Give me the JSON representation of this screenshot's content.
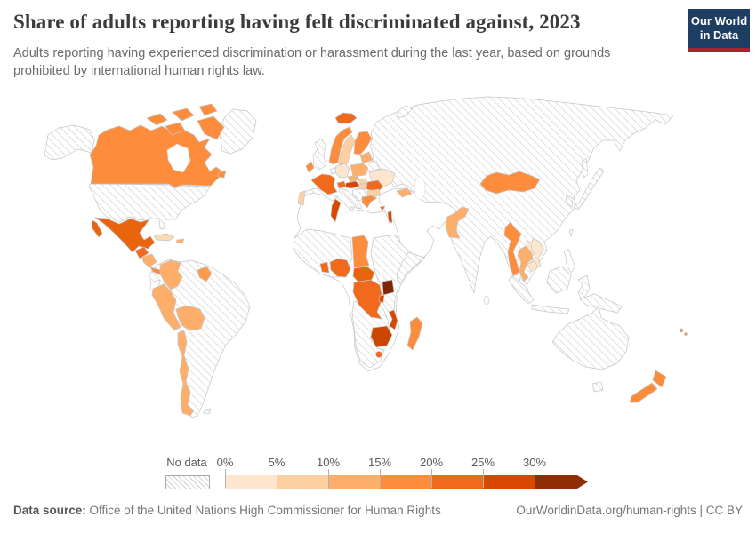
{
  "header": {
    "title": "Share of adults reporting having felt discriminated against, 2023",
    "subtitle": "Adults reporting having experienced discrimination or harassment during the last year, based on grounds prohibited by international human rights law.",
    "logo": {
      "line1": "Our World",
      "line2": "in Data"
    }
  },
  "legend": {
    "no_data_label": "No data",
    "tick_labels": [
      "0%",
      "5%",
      "10%",
      "15%",
      "20%",
      "25%",
      "30%"
    ],
    "buckets": [
      {
        "range": "0-5%",
        "color": "#fee6ce"
      },
      {
        "range": "5-10%",
        "color": "#fdd0a2"
      },
      {
        "range": "10-15%",
        "color": "#fdae6b"
      },
      {
        "range": "15-20%",
        "color": "#fd8d3c"
      },
      {
        "range": "20-25%",
        "color": "#f1691c"
      },
      {
        "range": "25-30%",
        "color": "#d94801"
      },
      {
        "range": "30%+",
        "color": "#8f2e06"
      }
    ]
  },
  "footer": {
    "source_label": "Data source:",
    "source_text": " Office of the United Nations High Commissioner for Human Rights",
    "url_text": "OurWorldinData.org/human-rights | CC BY"
  },
  "colors": {
    "logo_bg": "#1d3d63",
    "logo_accent": "#a3262e",
    "hatch_line": "#d2d2d2",
    "country_border": "#c6c6c6"
  },
  "chart_data": {
    "type": "choropleth_map",
    "title": "Share of adults reporting having felt discriminated against",
    "year": 2023,
    "unit": "% of adults",
    "no_data_style": "hatched",
    "legend_range": [
      0,
      30
    ],
    "countries": {
      "canada": {
        "name": "Canada",
        "color": "#fd8d3c",
        "range": "15-20%"
      },
      "mexico": {
        "name": "Mexico",
        "color": "#e8650e",
        "range": "20-25%"
      },
      "guatemala": {
        "name": "Guatemala",
        "color": "#f1691c",
        "range": "20-25%"
      },
      "honduras-nicaragua": {
        "name": "Honduras/Nicaragua",
        "color": "#fdae6b",
        "range": "10-15%"
      },
      "costa-rica-panama": {
        "name": "Costa Rica/Panama",
        "color": "#fd8d3c",
        "range": "15-20%"
      },
      "cuba": {
        "name": "Cuba",
        "color": "#fdd9b4",
        "range": "5-10%"
      },
      "dominican-republic": {
        "name": "Dominican Republic",
        "color": "#fdae6b",
        "range": "10-15%"
      },
      "colombia": {
        "name": "Colombia",
        "color": "#fdae6b",
        "range": "10-15%"
      },
      "guyana": {
        "name": "Guyana",
        "color": "#fd9a4e",
        "range": "15-20%"
      },
      "peru": {
        "name": "Peru",
        "color": "#fdae6b",
        "range": "10-15%"
      },
      "bolivia": {
        "name": "Bolivia",
        "color": "#fdae6b",
        "range": "10-15%"
      },
      "chile": {
        "name": "Chile",
        "color": "#fdae6b",
        "range": "10-15%"
      },
      "iceland": {
        "name": "Iceland",
        "color": "#f1691c",
        "range": "20-25%"
      },
      "ireland": {
        "name": "Ireland",
        "color": "#fd8d3c",
        "range": "15-20%"
      },
      "norway": {
        "name": "Norway",
        "color": "#fd8d3c",
        "range": "15-20%"
      },
      "sweden": {
        "name": "Sweden",
        "color": "#fdd0a2",
        "range": "5-10%"
      },
      "finland": {
        "name": "Finland",
        "color": "#fd8d3c",
        "range": "15-20%"
      },
      "denmark": {
        "name": "Denmark",
        "color": "#fd8d3c",
        "range": "15-20%"
      },
      "france": {
        "name": "France",
        "color": "#f1691c",
        "range": "20-25%"
      },
      "germany": {
        "name": "Germany",
        "color": "#fee6ce",
        "range": "0-5%"
      },
      "portugal": {
        "name": "Portugal",
        "color": "#fdd0a2",
        "range": "5-10%"
      },
      "switzerland": {
        "name": "Switzerland",
        "color": "#f1691c",
        "range": "20-25%"
      },
      "austria": {
        "name": "Austria",
        "color": "#d94801",
        "range": "25-30%"
      },
      "czechia": {
        "name": "Czechia",
        "color": "#fdae6b",
        "range": "10-15%"
      },
      "slovakia": {
        "name": "Slovakia",
        "color": "#fdd0a2",
        "range": "5-10%"
      },
      "hungary": {
        "name": "Hungary",
        "color": "#fdd0a2",
        "range": "5-10%"
      },
      "poland": {
        "name": "Poland",
        "color": "#fdae6b",
        "range": "10-15%"
      },
      "baltics": {
        "name": "Baltic states",
        "color": "#fdae6b",
        "range": "10-15%"
      },
      "ukraine": {
        "name": "Ukraine",
        "color": "#fee6ce",
        "range": "0-5%"
      },
      "romania": {
        "name": "Romania",
        "color": "#f1691c",
        "range": "20-25%"
      },
      "bulgaria": {
        "name": "Bulgaria",
        "color": "#fdd0a2",
        "range": "5-10%"
      },
      "greece": {
        "name": "Greece",
        "color": "#fd8d3c",
        "range": "15-20%"
      },
      "cyprus": {
        "name": "Cyprus",
        "color": "#f1691c",
        "range": "20-25%"
      },
      "georgia": {
        "name": "Georgia",
        "color": "#fdae6b",
        "range": "10-15%"
      },
      "israel": {
        "name": "Israel",
        "color": "#d94801",
        "range": "25-30%"
      },
      "tunisia": {
        "name": "Tunisia",
        "color": "#d94801",
        "range": "25-30%"
      },
      "ghana": {
        "name": "Ghana",
        "color": "#f1691c",
        "range": "20-25%"
      },
      "nigeria": {
        "name": "Nigeria",
        "color": "#f1691c",
        "range": "20-25%"
      },
      "chad": {
        "name": "Chad",
        "color": "#fd8d3c",
        "range": "15-20%"
      },
      "central-african-republic": {
        "name": "Central African Republic",
        "color": "#e8650e",
        "range": "20-25%"
      },
      "dr-congo": {
        "name": "Democratic Republic of Congo",
        "color": "#f1691c",
        "range": "20-25%"
      },
      "uganda": {
        "name": "Uganda",
        "color": "#7f2704",
        "range": "30%+"
      },
      "rwanda-burundi": {
        "name": "Rwanda/Burundi",
        "color": "#d94801",
        "range": "25-30%"
      },
      "malawi": {
        "name": "Malawi/Mozambique",
        "color": "#d94801",
        "range": "25-30%"
      },
      "zimbabwe": {
        "name": "Zimbabwe",
        "color": "#cc4602",
        "range": "25-30%"
      },
      "madagascar": {
        "name": "Madagascar",
        "color": "#fd8d3c",
        "range": "15-20%"
      },
      "lesotho": {
        "name": "Lesotho",
        "color": "#f1691c",
        "range": "20-25%"
      },
      "mongolia": {
        "name": "Mongolia",
        "color": "#fd8d3c",
        "range": "15-20%"
      },
      "pakistan": {
        "name": "Pakistan",
        "color": "#fdae6b",
        "range": "10-15%"
      },
      "myanmar": {
        "name": "Myanmar",
        "color": "#fd8d3c",
        "range": "15-20%"
      },
      "thailand": {
        "name": "Thailand",
        "color": "#fdae6b",
        "range": "10-15%"
      },
      "laos": {
        "name": "Laos",
        "color": "#fee6ce",
        "range": "0-5%"
      },
      "vietnam": {
        "name": "Vietnam",
        "color": "#fee6ce",
        "range": "0-5%"
      },
      "cambodia": {
        "name": "Cambodia",
        "color": "#fee6ce",
        "range": "0-5%"
      },
      "new-zealand": {
        "name": "New Zealand",
        "color": "#fd8d3c",
        "range": "15-20%"
      },
      "fiji": {
        "name": "Fiji",
        "color": "#fd8d3c",
        "range": "15-20%"
      }
    }
  }
}
